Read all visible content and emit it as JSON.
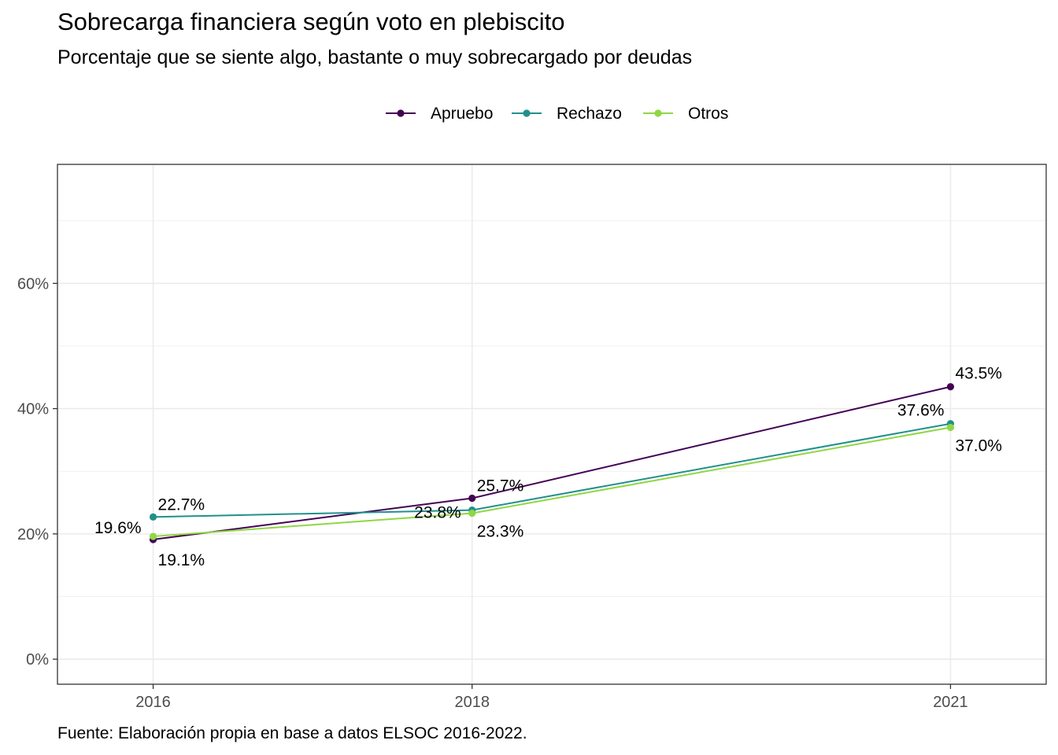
{
  "title": "Sobrecarga financiera según voto en plebiscito",
  "subtitle": "Porcentaje que se siente algo, bastante o muy sobrecargado por deudas",
  "caption": "Fuente: Elaboración propia en base a datos ELSOC 2016-2022.",
  "chart_data": {
    "type": "line",
    "title": "Sobrecarga financiera según voto en plebiscito",
    "subtitle": "Porcentaje que se siente algo, bastante o muy sobrecargado por deudas",
    "x": [
      "2016",
      "2018",
      "2021"
    ],
    "xlabel": "",
    "ylabel": "",
    "ylim": [
      -0.04,
      0.79
    ],
    "yticks": [
      0,
      0.2,
      0.4,
      0.6
    ],
    "ytick_labels": [
      "0%",
      "20%",
      "40%",
      "60%"
    ],
    "grid": true,
    "legend_position": "top",
    "series": [
      {
        "name": "Apruebo",
        "color": "#440154",
        "values": [
          0.191,
          0.257,
          0.435
        ],
        "labels": [
          "19.1%",
          "25.7%",
          "43.5%"
        ]
      },
      {
        "name": "Rechazo",
        "color": "#21908C",
        "values": [
          0.227,
          0.238,
          0.376
        ],
        "labels": [
          "22.7%",
          "23.8%",
          "37.6%"
        ]
      },
      {
        "name": "Otros",
        "color": "#8FD744",
        "values": [
          0.196,
          0.233,
          0.37
        ],
        "labels": [
          "19.6%",
          "23.3%",
          "37.0%"
        ]
      }
    ]
  }
}
